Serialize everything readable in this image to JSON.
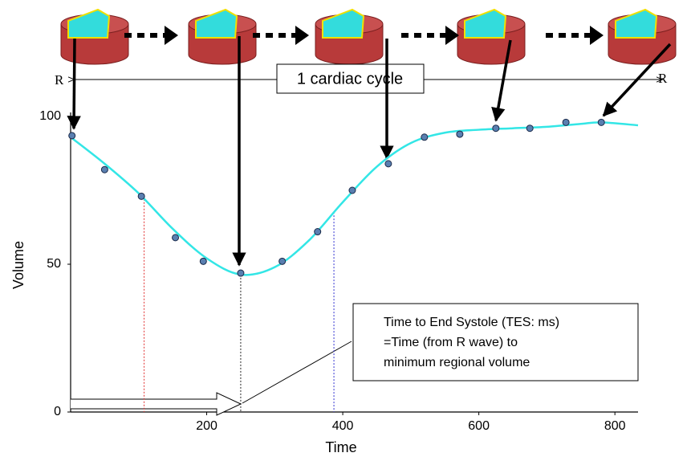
{
  "chart_data": {
    "type": "line",
    "x_label": "Time",
    "y_label": "Volume",
    "xlim": [
      0,
      834
    ],
    "ylim": [
      0,
      100
    ],
    "xticks": [
      200,
      400,
      600,
      800
    ],
    "yticks": [
      0,
      50,
      100
    ],
    "curve": {
      "color": "#33e6e6",
      "x": [
        0,
        50,
        100,
        150,
        200,
        250,
        300,
        350,
        400,
        450,
        500,
        550,
        600,
        650,
        700,
        750,
        780,
        834
      ],
      "values": [
        93,
        84,
        74,
        62,
        52,
        46.5,
        49,
        58,
        71,
        83,
        91,
        94.5,
        95.5,
        96,
        96.5,
        97.5,
        98,
        97
      ]
    },
    "points": {
      "color": "#5a7fb0",
      "x": [
        2,
        50,
        104,
        154,
        195,
        250,
        311,
        363,
        414,
        467,
        520,
        572,
        625,
        675,
        728,
        780
      ],
      "values": [
        93.5,
        82,
        73,
        59,
        51,
        47,
        51,
        61,
        75,
        84,
        93,
        94,
        96,
        96,
        98,
        98
      ]
    },
    "markers": [
      {
        "x": 108,
        "color": "#e03030"
      },
      {
        "x": 250,
        "color": "#202020"
      },
      {
        "x": 387,
        "color": "#3030d0"
      }
    ],
    "r_start": "R",
    "r_end": "R",
    "cycle_label": "1 cardiac cycle",
    "annotation": [
      "Time to End Systole (TES: ms)",
      "=Time (from R wave) to",
      "minimum regional volume"
    ]
  }
}
